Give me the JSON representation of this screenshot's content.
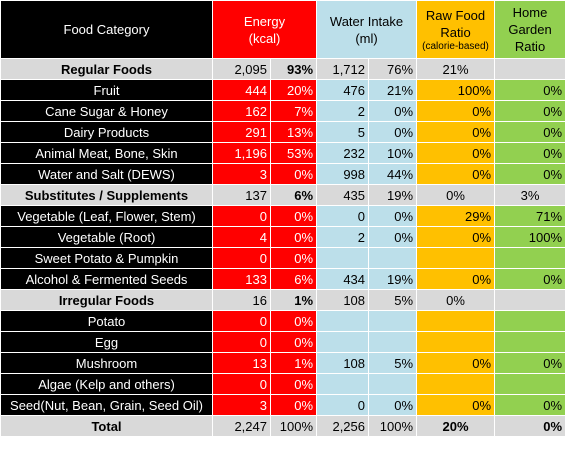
{
  "header": {
    "category": "Food Category",
    "energy": [
      "Energy",
      "(kcal)"
    ],
    "water": [
      "Water Intake",
      "(ml)"
    ],
    "raw": [
      "Raw Food",
      "Ratio"
    ],
    "raw_note": "(calorie-based)",
    "garden": [
      "Home",
      "Garden",
      "Ratio"
    ]
  },
  "rows": [
    {
      "type": "group",
      "name": "Regular Foods",
      "e": "2,095",
      "ep": "93%",
      "w": "1,712",
      "wp": "76%",
      "raw": "21%",
      "garden": "",
      "bold_ep": true
    },
    {
      "type": "item",
      "name": "Fruit",
      "e": "444",
      "ep": "20%",
      "w": "476",
      "wp": "21%",
      "raw": "100%",
      "garden": "0%"
    },
    {
      "type": "item",
      "name": "Cane Sugar & Honey",
      "e": "162",
      "ep": "7%",
      "w": "2",
      "wp": "0%",
      "raw": "0%",
      "garden": "0%"
    },
    {
      "type": "item",
      "name": "Dairy Products",
      "e": "291",
      "ep": "13%",
      "w": "5",
      "wp": "0%",
      "raw": "0%",
      "garden": "0%"
    },
    {
      "type": "item",
      "name": "Animal Meat, Bone, Skin",
      "e": "1,196",
      "ep": "53%",
      "w": "232",
      "wp": "10%",
      "raw": "0%",
      "garden": "0%"
    },
    {
      "type": "item",
      "name": "Water and Salt (DEWS)",
      "e": "3",
      "ep": "0%",
      "w": "998",
      "wp": "44%",
      "raw": "0%",
      "garden": "0%"
    },
    {
      "type": "group",
      "name": "Substitutes / Supplements",
      "e": "137",
      "ep": "6%",
      "w": "435",
      "wp": "19%",
      "raw": "0%",
      "garden": "3%",
      "bold_ep": true
    },
    {
      "type": "item",
      "name": "Vegetable (Leaf, Flower, Stem)",
      "e": "0",
      "ep": "0%",
      "w": "0",
      "wp": "0%",
      "raw": "29%",
      "garden": "71%"
    },
    {
      "type": "item",
      "name": "Vegetable (Root)",
      "e": "4",
      "ep": "0%",
      "w": "2",
      "wp": "0%",
      "raw": "0%",
      "garden": "100%"
    },
    {
      "type": "item",
      "name": "Sweet Potato & Pumpkin",
      "e": "0",
      "ep": "0%",
      "w": "",
      "wp": "",
      "raw": "",
      "garden": ""
    },
    {
      "type": "item",
      "name": "Alcohol & Fermented Seeds",
      "e": "133",
      "ep": "6%",
      "w": "434",
      "wp": "19%",
      "raw": "0%",
      "garden": "0%"
    },
    {
      "type": "group",
      "name": "Irregular Foods",
      "e": "16",
      "ep": "1%",
      "w": "108",
      "wp": "5%",
      "raw": "0%",
      "garden": "",
      "bold_ep": true
    },
    {
      "type": "item",
      "name": "Potato",
      "e": "0",
      "ep": "0%",
      "w": "",
      "wp": "",
      "raw": "",
      "garden": ""
    },
    {
      "type": "item",
      "name": "Egg",
      "e": "0",
      "ep": "0%",
      "w": "",
      "wp": "",
      "raw": "",
      "garden": ""
    },
    {
      "type": "item",
      "name": "Mushroom",
      "e": "13",
      "ep": "1%",
      "w": "108",
      "wp": "5%",
      "raw": "0%",
      "garden": "0%"
    },
    {
      "type": "item",
      "name": "Algae (Kelp and others)",
      "e": "0",
      "ep": "0%",
      "w": "",
      "wp": "",
      "raw": "",
      "garden": ""
    },
    {
      "type": "item",
      "name": "Seed(Nut, Bean, Grain, Seed Oil)",
      "e": "3",
      "ep": "0%",
      "w": "0",
      "wp": "0%",
      "raw": "0%",
      "garden": "0%"
    },
    {
      "type": "total",
      "name": "Total",
      "e": "2,247",
      "ep": "100%",
      "w": "2,256",
      "wp": "100%",
      "raw": "20%",
      "garden": "0%"
    }
  ]
}
